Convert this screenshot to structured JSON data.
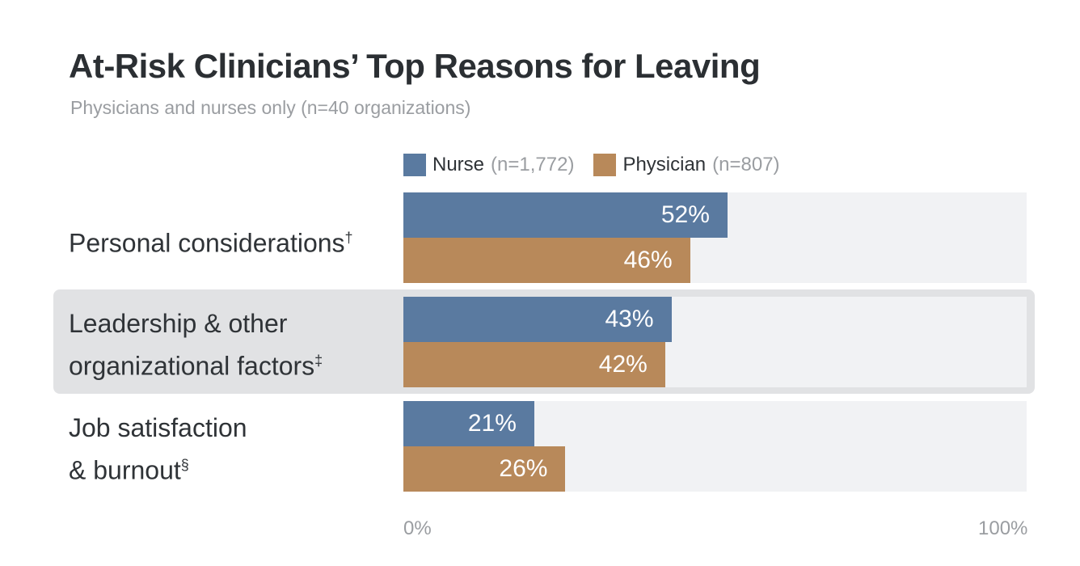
{
  "chart_data": {
    "type": "bar",
    "orientation": "horizontal",
    "title": "At-Risk Clinicians’ Top Reasons for Leaving",
    "subtitle": "Physicians and nurses only (n=40 organizations)",
    "categories": [
      {
        "label_lines": [
          "Personal considerations"
        ],
        "mark": "†"
      },
      {
        "label_lines": [
          "Leadership & other",
          "organizational factors"
        ],
        "mark": "‡",
        "highlighted": true
      },
      {
        "label_lines": [
          "Job satisfaction",
          "& burnout"
        ],
        "mark": "§"
      }
    ],
    "series": [
      {
        "name": "Nurse",
        "n": "(n=1,772)",
        "color": "#5a7aa0",
        "values": [
          52,
          43,
          21
        ],
        "labels": [
          "52%",
          "43%",
          "21%"
        ]
      },
      {
        "name": "Physician",
        "n": "(n=807)",
        "color": "#b8895a",
        "values": [
          46,
          42,
          26
        ],
        "labels": [
          "46%",
          "42%",
          "26%"
        ]
      }
    ],
    "xlim": [
      0,
      100
    ],
    "x_tick_labels": [
      "0%",
      "100%"
    ],
    "legend": "top",
    "grid": false,
    "background_color": "#f1f2f4",
    "highlight_color": "#e1e2e4"
  }
}
